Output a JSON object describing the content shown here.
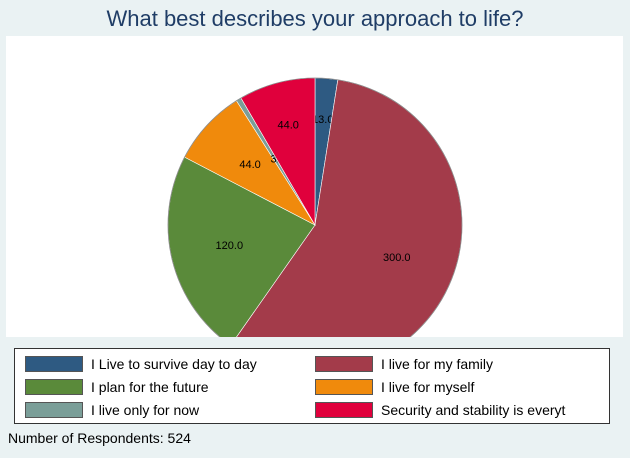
{
  "chart_data": {
    "type": "pie",
    "title": "What best describes your approach to life?",
    "slices": [
      {
        "label": "I Live to survive day to day",
        "value": 13.0,
        "display": "13.0",
        "color": "#2e5a82"
      },
      {
        "label": "I live for my family",
        "value": 300.0,
        "display": "300.0",
        "color": "#a33b4a"
      },
      {
        "label": "I plan for the future",
        "value": 120.0,
        "display": "120.0",
        "color": "#5a8a3a"
      },
      {
        "label": "I live for myself",
        "value": 44.0,
        "display": "44.0",
        "color": "#f08a0c"
      },
      {
        "label": "I live only for now",
        "value": 3.0,
        "display": "3.0",
        "color": "#7a9e98"
      },
      {
        "label": "Security and stability is everyt",
        "value": 44.0,
        "display": "44.0",
        "color": "#e0003c"
      }
    ],
    "legend_placement": "bottom",
    "note": "Number of Respondents: 524"
  }
}
